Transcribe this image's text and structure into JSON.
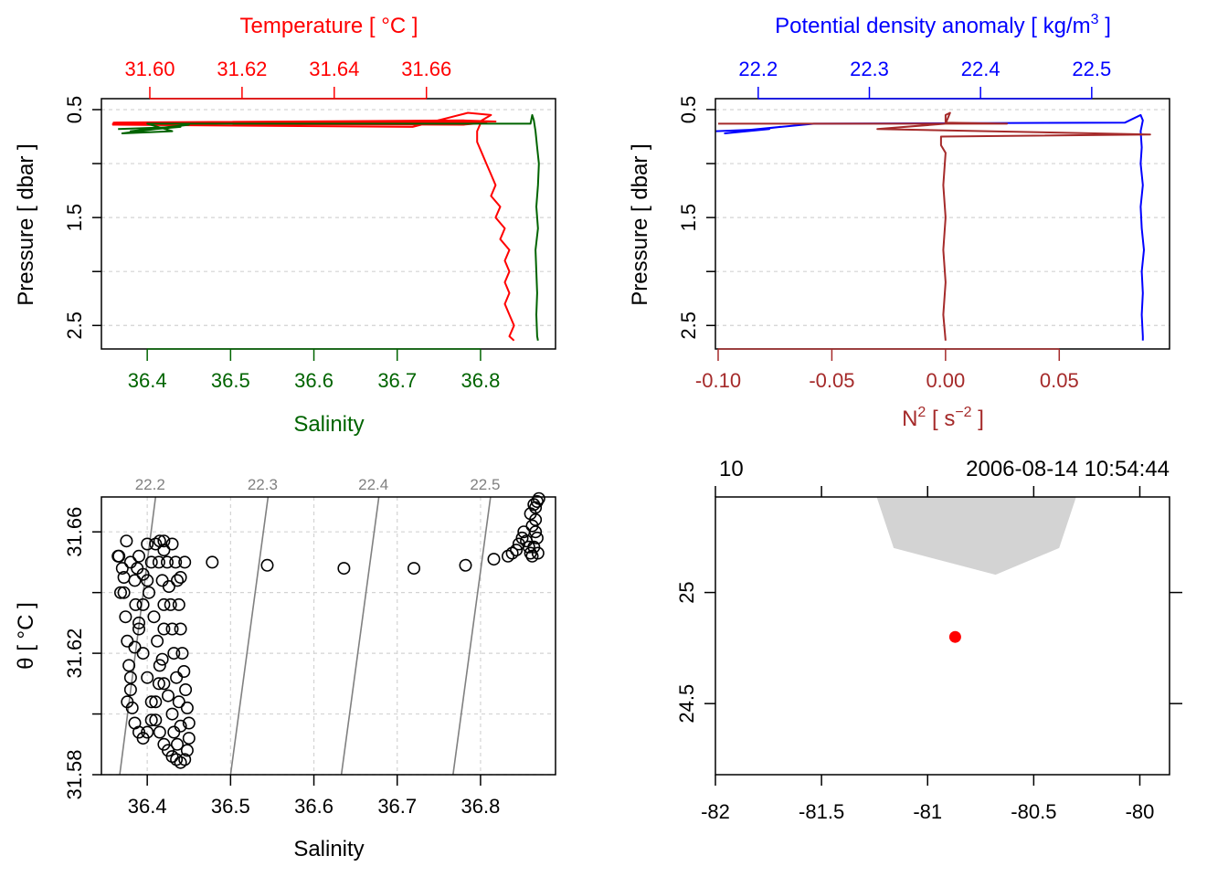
{
  "colors": {
    "temperature": "#ff0000",
    "salinity": "#006400",
    "density": "#0000ff",
    "n2": "#a52a2a",
    "isopycnal": "#808080",
    "grid": "#d3d3d3",
    "land": "#d3d3d3",
    "station": "#ff0000",
    "axis": "#000000"
  },
  "chart_data": [
    {
      "id": "profile-ts",
      "type": "line",
      "ylabel": "Pressure [ dbar ]",
      "ylim": [
        2.65,
        0.5
      ],
      "yticks": [
        0.5,
        1.0,
        1.5,
        2.0,
        2.5
      ],
      "ytick_labels": [
        "0.5",
        "",
        "1.5",
        "",
        "2.5"
      ],
      "grid": true,
      "top_axis": {
        "label": "Temperature [ °C ]",
        "lim": [
          31.5895,
          31.688
        ],
        "ticks": [
          31.6,
          31.62,
          31.64,
          31.66
        ],
        "tick_labels": [
          "31.60",
          "31.62",
          "31.64",
          "31.66"
        ]
      },
      "bottom_axis": {
        "label": "Salinity",
        "lim": [
          36.345,
          36.89
        ],
        "ticks": [
          36.4,
          36.5,
          36.6,
          36.7,
          36.8
        ],
        "tick_labels": [
          "36.4",
          "36.5",
          "36.6",
          "36.7",
          "36.8"
        ]
      },
      "series": [
        {
          "name": "Temperature",
          "axis": "top",
          "points": [
            [
              31.592,
              0.62
            ],
            [
              31.668,
              0.6
            ],
            [
              31.675,
              0.61
            ],
            [
              31.592,
              0.63
            ],
            [
              31.668,
              0.64
            ],
            [
              31.673,
              0.62
            ],
            [
              31.592,
              0.64
            ],
            [
              31.657,
              0.66
            ],
            [
              31.669,
              0.53
            ],
            [
              31.674,
              0.55
            ],
            [
              31.672,
              0.6
            ],
            [
              31.671,
              0.7
            ],
            [
              31.671,
              0.8
            ],
            [
              31.672,
              0.9
            ],
            [
              31.673,
              1.0
            ],
            [
              31.674,
              1.1
            ],
            [
              31.675,
              1.2
            ],
            [
              31.674,
              1.3
            ],
            [
              31.676,
              1.4
            ],
            [
              31.675,
              1.5
            ],
            [
              31.677,
              1.6
            ],
            [
              31.676,
              1.7
            ],
            [
              31.678,
              1.8
            ],
            [
              31.677,
              1.9
            ],
            [
              31.678,
              2.0
            ],
            [
              31.677,
              2.1
            ],
            [
              31.678,
              2.2
            ],
            [
              31.677,
              2.3
            ],
            [
              31.678,
              2.4
            ],
            [
              31.679,
              2.5
            ],
            [
              31.678,
              2.6
            ],
            [
              31.679,
              2.64
            ]
          ]
        },
        {
          "name": "Salinity",
          "axis": "bottom",
          "points": [
            [
              36.365,
              0.68
            ],
            [
              36.44,
              0.66
            ],
            [
              36.38,
              0.7
            ],
            [
              36.45,
              0.64
            ],
            [
              36.37,
              0.72
            ],
            [
              36.43,
              0.7
            ],
            [
              36.4,
              0.63
            ],
            [
              36.86,
              0.63
            ],
            [
              36.862,
              0.55
            ],
            [
              36.864,
              0.6
            ],
            [
              36.866,
              0.7
            ],
            [
              36.868,
              0.85
            ],
            [
              36.87,
              1.0
            ],
            [
              36.869,
              1.2
            ],
            [
              36.867,
              1.4
            ],
            [
              36.869,
              1.6
            ],
            [
              36.866,
              1.8
            ],
            [
              36.867,
              2.0
            ],
            [
              36.868,
              2.2
            ],
            [
              36.867,
              2.4
            ],
            [
              36.868,
              2.6
            ],
            [
              36.869,
              2.64
            ]
          ]
        }
      ]
    },
    {
      "id": "profile-density",
      "type": "line",
      "ylabel": "Pressure [ dbar ]",
      "ylim": [
        2.65,
        0.5
      ],
      "yticks": [
        0.5,
        1.0,
        1.5,
        2.0,
        2.5
      ],
      "ytick_labels": [
        "0.5",
        "",
        "1.5",
        "",
        "2.5"
      ],
      "grid": true,
      "top_axis": {
        "label": "Potential density anomaly [ kg/m",
        "label_sup": "3",
        "label_end": " ]",
        "lim": [
          22.1615,
          22.57
        ],
        "ticks": [
          22.2,
          22.3,
          22.4,
          22.5
        ],
        "tick_labels": [
          "22.2",
          "22.3",
          "22.4",
          "22.5"
        ]
      },
      "bottom_axis": {
        "label": "N",
        "label_sup": "2",
        "label_mid": " [ s",
        "label_sup2": "−2",
        "label_end": " ]",
        "lim": [
          -0.1012,
          0.0985
        ],
        "ticks": [
          -0.1,
          -0.05,
          0.0,
          0.05
        ],
        "tick_labels": [
          "-0.10",
          "-0.05",
          "0.00",
          "0.05"
        ]
      },
      "series": [
        {
          "name": "Potential density anomaly",
          "axis": "top",
          "points": [
            [
              22.162,
              0.7
            ],
            [
              22.21,
              0.68
            ],
            [
              22.17,
              0.72
            ],
            [
              22.22,
              0.66
            ],
            [
              22.18,
              0.7
            ],
            [
              22.25,
              0.63
            ],
            [
              22.53,
              0.62
            ],
            [
              22.544,
              0.55
            ],
            [
              22.546,
              0.6
            ],
            [
              22.544,
              0.7
            ],
            [
              22.545,
              0.85
            ],
            [
              22.544,
              1.0
            ],
            [
              22.546,
              1.2
            ],
            [
              22.544,
              1.4
            ],
            [
              22.545,
              1.6
            ],
            [
              22.547,
              1.8
            ],
            [
              22.545,
              2.0
            ],
            [
              22.546,
              2.2
            ],
            [
              22.545,
              2.4
            ],
            [
              22.546,
              2.6
            ],
            [
              22.546,
              2.64
            ]
          ]
        },
        {
          "name": "N2",
          "axis": "bottom",
          "points": [
            [
              -0.1,
              0.63
            ],
            [
              0.027,
              0.63
            ],
            [
              0.0,
              0.62
            ],
            [
              0.0,
              0.6
            ],
            [
              0.0,
              0.55
            ],
            [
              0.002,
              0.53
            ],
            [
              0.0,
              0.63
            ],
            [
              -0.03,
              0.68
            ],
            [
              0.09,
              0.73
            ],
            [
              -0.002,
              0.75
            ],
            [
              -0.002,
              0.83
            ],
            [
              0.0,
              0.9
            ],
            [
              -0.001,
              1.2
            ],
            [
              0.0,
              1.5
            ],
            [
              -0.001,
              1.8
            ],
            [
              0.0,
              2.1
            ],
            [
              -0.001,
              2.4
            ],
            [
              0.0,
              2.64
            ]
          ]
        }
      ]
    },
    {
      "id": "ts-diagram",
      "type": "scatter",
      "xlabel": "Salinity",
      "ylabel": "θ [ °C ]",
      "xlim": [
        36.345,
        36.89
      ],
      "ylim": [
        31.58,
        31.6715
      ],
      "xticks": [
        36.4,
        36.5,
        36.6,
        36.7,
        36.8
      ],
      "xtick_labels": [
        "36.4",
        "36.5",
        "36.6",
        "36.7",
        "36.8"
      ],
      "yticks": [
        31.58,
        31.6,
        31.62,
        31.64,
        31.66
      ],
      "ytick_labels": [
        "31.58",
        "",
        "31.62",
        "",
        "31.66"
      ],
      "grid": true,
      "isopycnals": [
        {
          "label": "22.2",
          "bottom_x": 36.367,
          "top_x": 36.41
        },
        {
          "label": "22.3",
          "bottom_x": 36.5,
          "top_x": 36.545
        },
        {
          "label": "22.4",
          "bottom_x": 36.633,
          "top_x": 36.678
        },
        {
          "label": "22.5",
          "bottom_x": 36.767,
          "top_x": 36.812
        }
      ],
      "points": [
        [
          36.365,
          31.652
        ],
        [
          36.37,
          31.648
        ],
        [
          36.372,
          31.64
        ],
        [
          36.374,
          31.632
        ],
        [
          36.376,
          31.624
        ],
        [
          36.378,
          31.616
        ],
        [
          36.38,
          31.608
        ],
        [
          36.382,
          31.602
        ],
        [
          36.385,
          31.597
        ],
        [
          36.39,
          31.594
        ],
        [
          36.395,
          31.592
        ],
        [
          36.4,
          31.594
        ],
        [
          36.405,
          31.598
        ],
        [
          36.41,
          31.604
        ],
        [
          36.414,
          31.61
        ],
        [
          36.418,
          31.618
        ],
        [
          36.42,
          31.628
        ],
        [
          36.42,
          31.636
        ],
        [
          36.418,
          31.644
        ],
        [
          36.414,
          31.65
        ],
        [
          36.41,
          31.656
        ],
        [
          36.4,
          31.656
        ],
        [
          36.39,
          31.652
        ],
        [
          36.385,
          31.644
        ],
        [
          36.386,
          31.636
        ],
        [
          36.39,
          31.628
        ],
        [
          36.395,
          31.62
        ],
        [
          36.4,
          31.612
        ],
        [
          36.405,
          31.604
        ],
        [
          36.41,
          31.598
        ],
        [
          36.415,
          31.594
        ],
        [
          36.42,
          31.59
        ],
        [
          36.425,
          31.588
        ],
        [
          36.43,
          31.586
        ],
        [
          36.435,
          31.585
        ],
        [
          36.44,
          31.584
        ],
        [
          36.445,
          31.585
        ],
        [
          36.448,
          31.588
        ],
        [
          36.45,
          31.592
        ],
        [
          36.45,
          31.597
        ],
        [
          36.448,
          31.602
        ],
        [
          36.446,
          31.608
        ],
        [
          36.444,
          31.614
        ],
        [
          36.442,
          31.62
        ],
        [
          36.44,
          31.628
        ],
        [
          36.438,
          31.636
        ],
        [
          36.436,
          31.644
        ],
        [
          36.434,
          31.65
        ],
        [
          36.43,
          31.656
        ],
        [
          36.42,
          31.657
        ],
        [
          36.375,
          31.657
        ],
        [
          36.38,
          31.65
        ],
        [
          36.388,
          31.648
        ],
        [
          36.395,
          31.646
        ],
        [
          36.402,
          31.64
        ],
        [
          36.408,
          31.632
        ],
        [
          36.412,
          31.624
        ],
        [
          36.415,
          31.616
        ],
        [
          36.42,
          31.61
        ],
        [
          36.425,
          31.606
        ],
        [
          36.43,
          31.6
        ],
        [
          36.432,
          31.594
        ],
        [
          36.436,
          31.59
        ],
        [
          36.44,
          31.596
        ],
        [
          36.438,
          31.604
        ],
        [
          36.435,
          31.612
        ],
        [
          36.432,
          31.62
        ],
        [
          36.43,
          31.628
        ],
        [
          36.428,
          31.636
        ],
        [
          36.426,
          31.642
        ],
        [
          36.424,
          31.65
        ],
        [
          36.42,
          31.654
        ],
        [
          36.415,
          31.657
        ],
        [
          36.405,
          31.65
        ],
        [
          36.4,
          31.644
        ],
        [
          36.395,
          31.636
        ],
        [
          36.39,
          31.63
        ],
        [
          36.385,
          31.622
        ],
        [
          36.38,
          31.612
        ],
        [
          36.376,
          31.604
        ],
        [
          36.372,
          31.645
        ],
        [
          36.366,
          31.652
        ],
        [
          36.368,
          31.64
        ],
        [
          36.44,
          31.645
        ],
        [
          36.445,
          31.65
        ],
        [
          36.478,
          31.65
        ],
        [
          36.544,
          31.649
        ],
        [
          36.636,
          31.648
        ],
        [
          36.72,
          31.648
        ],
        [
          36.782,
          31.649
        ],
        [
          36.816,
          31.651
        ],
        [
          36.833,
          31.652
        ],
        [
          36.838,
          31.653
        ],
        [
          36.843,
          31.654
        ],
        [
          36.846,
          31.656
        ],
        [
          36.85,
          31.658
        ],
        [
          36.852,
          31.66
        ],
        [
          36.855,
          31.657
        ],
        [
          36.858,
          31.655
        ],
        [
          36.86,
          31.653
        ],
        [
          36.862,
          31.652
        ],
        [
          36.864,
          31.655
        ],
        [
          36.866,
          31.66
        ],
        [
          36.866,
          31.664
        ],
        [
          36.866,
          31.668
        ],
        [
          36.868,
          31.67
        ],
        [
          36.87,
          31.671
        ],
        [
          36.864,
          31.669
        ],
        [
          36.86,
          31.666
        ],
        [
          36.862,
          31.662
        ],
        [
          36.868,
          31.658
        ],
        [
          36.869,
          31.653
        ]
      ]
    },
    {
      "id": "station-map",
      "type": "scatter",
      "xlim": [
        -82,
        -79.86
      ],
      "ylim": [
        24.18,
        25.43
      ],
      "xticks": [
        -82,
        -81.5,
        -81,
        -80.5,
        -80
      ],
      "xtick_labels": [
        "-82",
        "-81.5",
        "-81",
        "-80.5",
        "-80"
      ],
      "yticks": [
        24.5,
        25
      ],
      "ytick_labels": [
        "24.5",
        "25"
      ],
      "top_left_text": "10",
      "top_right_text": "2006-08-14 10:54:44",
      "station": {
        "lon": -80.87,
        "lat": 24.8
      },
      "land": [
        [
          -81.24,
          25.43
        ],
        [
          -80.3,
          25.43
        ],
        [
          -80.38,
          25.2
        ],
        [
          -80.68,
          25.08
        ],
        [
          -81.16,
          25.2
        ]
      ]
    }
  ]
}
